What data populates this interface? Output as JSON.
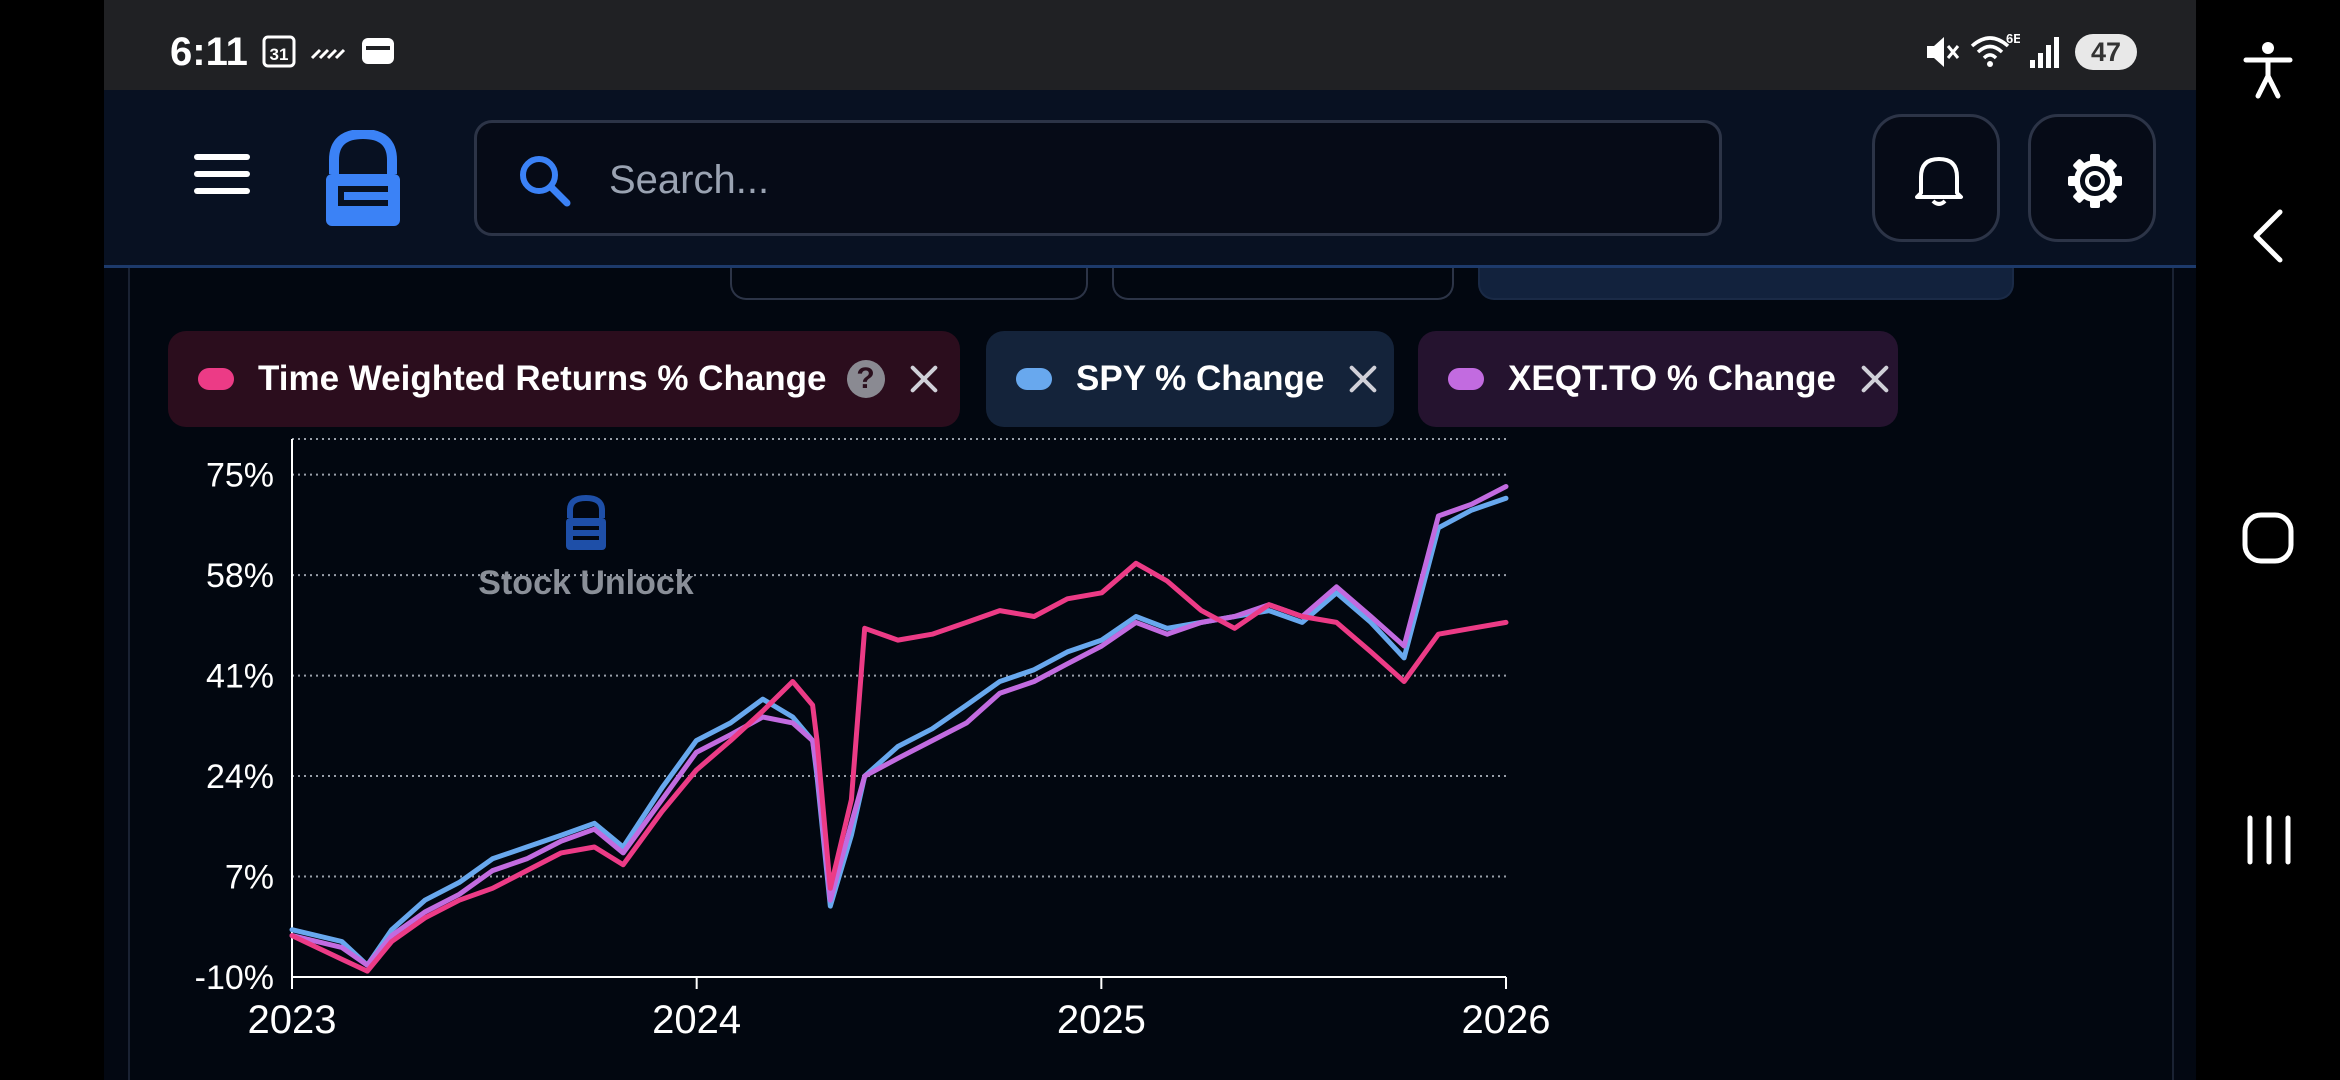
{
  "status_bar": {
    "time": "6:11",
    "calendar_day": "31",
    "network_label": "6E",
    "battery": "47",
    "icons": [
      "calendar-icon",
      "missed-call-icon",
      "wallet-icon",
      "mute-icon",
      "wifi-icon",
      "signal-icon",
      "battery-icon"
    ]
  },
  "header": {
    "search_placeholder": "Search...",
    "logo_name": "stock-unlock-logo",
    "icons": [
      "menu-icon",
      "search-icon",
      "bell-icon",
      "gear-icon"
    ]
  },
  "chips": [
    {
      "label": "Time Weighted Returns % Change",
      "help": "?",
      "dot_color": "#ec3b86",
      "bg": "#2b0d1d"
    },
    {
      "label": "SPY % Change",
      "dot_color": "#68a8ee",
      "bg": "#14233a"
    },
    {
      "label": "XEQT.TO % Change",
      "dot_color": "#c26be0",
      "bg": "#25132f"
    }
  ],
  "chart": {
    "watermark": "Stock Unlock"
  },
  "chart_data": {
    "type": "line",
    "xlabel": "",
    "ylabel": "",
    "x_ticks": [
      "2023",
      "2024",
      "2025",
      "2026"
    ],
    "x_range": [
      "2023-01-01",
      "2026-01-01"
    ],
    "y_ticks": [
      "-10%",
      "7%",
      "24%",
      "41%",
      "58%",
      "75%"
    ],
    "y_tick_values": [
      -10,
      7,
      24,
      41,
      58,
      75
    ],
    "ylim": [
      -10,
      79
    ],
    "grid": "horizontal-dotted",
    "x": [
      "2023-01-01",
      "2023-02-15",
      "2023-03-10",
      "2023-04-01",
      "2023-05-01",
      "2023-06-01",
      "2023-07-01",
      "2023-08-01",
      "2023-09-01",
      "2023-10-01",
      "2023-10-27",
      "2023-12-01",
      "2024-01-01",
      "2024-02-01",
      "2024-03-01",
      "2024-03-28",
      "2024-04-15",
      "2024-04-19",
      "2024-05-01",
      "2024-05-20",
      "2024-06-01",
      "2024-07-01",
      "2024-08-01",
      "2024-09-01",
      "2024-10-01",
      "2024-11-01",
      "2024-12-01",
      "2025-01-01",
      "2025-02-01",
      "2025-03-01",
      "2025-04-01",
      "2025-05-01",
      "2025-06-01",
      "2025-07-01",
      "2025-08-01",
      "2025-09-01",
      "2025-10-01",
      "2025-11-01",
      "2025-12-01",
      "2026-01-01"
    ],
    "series": [
      {
        "name": "Time Weighted Returns % Change",
        "color": "#ec3b86",
        "values": [
          -3,
          -7,
          -9,
          -4,
          0,
          3,
          5,
          8,
          11,
          12,
          9,
          18,
          25,
          30,
          35,
          40,
          36,
          30,
          5,
          20,
          49,
          47,
          48,
          50,
          52,
          51,
          54,
          55,
          60,
          57,
          52,
          49,
          53,
          51,
          50,
          45,
          40,
          48,
          49,
          50
        ]
      },
      {
        "name": "SPY % Change",
        "color": "#68a8ee",
        "values": [
          -2,
          -4,
          -8,
          -2,
          3,
          6,
          10,
          12,
          14,
          16,
          12,
          22,
          30,
          33,
          37,
          34,
          30,
          24,
          2,
          14,
          24,
          29,
          32,
          36,
          40,
          42,
          45,
          47,
          51,
          49,
          50,
          51,
          52,
          50,
          55,
          50,
          44,
          66,
          69,
          71
        ]
      },
      {
        "name": "XEQT.TO % Change",
        "color": "#c26be0",
        "values": [
          -3,
          -5,
          -8,
          -3,
          1,
          4,
          8,
          10,
          13,
          15,
          11,
          20,
          28,
          31,
          34,
          33,
          30,
          25,
          3,
          16,
          24,
          27,
          30,
          33,
          38,
          40,
          43,
          46,
          50,
          48,
          50,
          51,
          53,
          51,
          56,
          51,
          46,
          68,
          70,
          73
        ]
      }
    ]
  }
}
